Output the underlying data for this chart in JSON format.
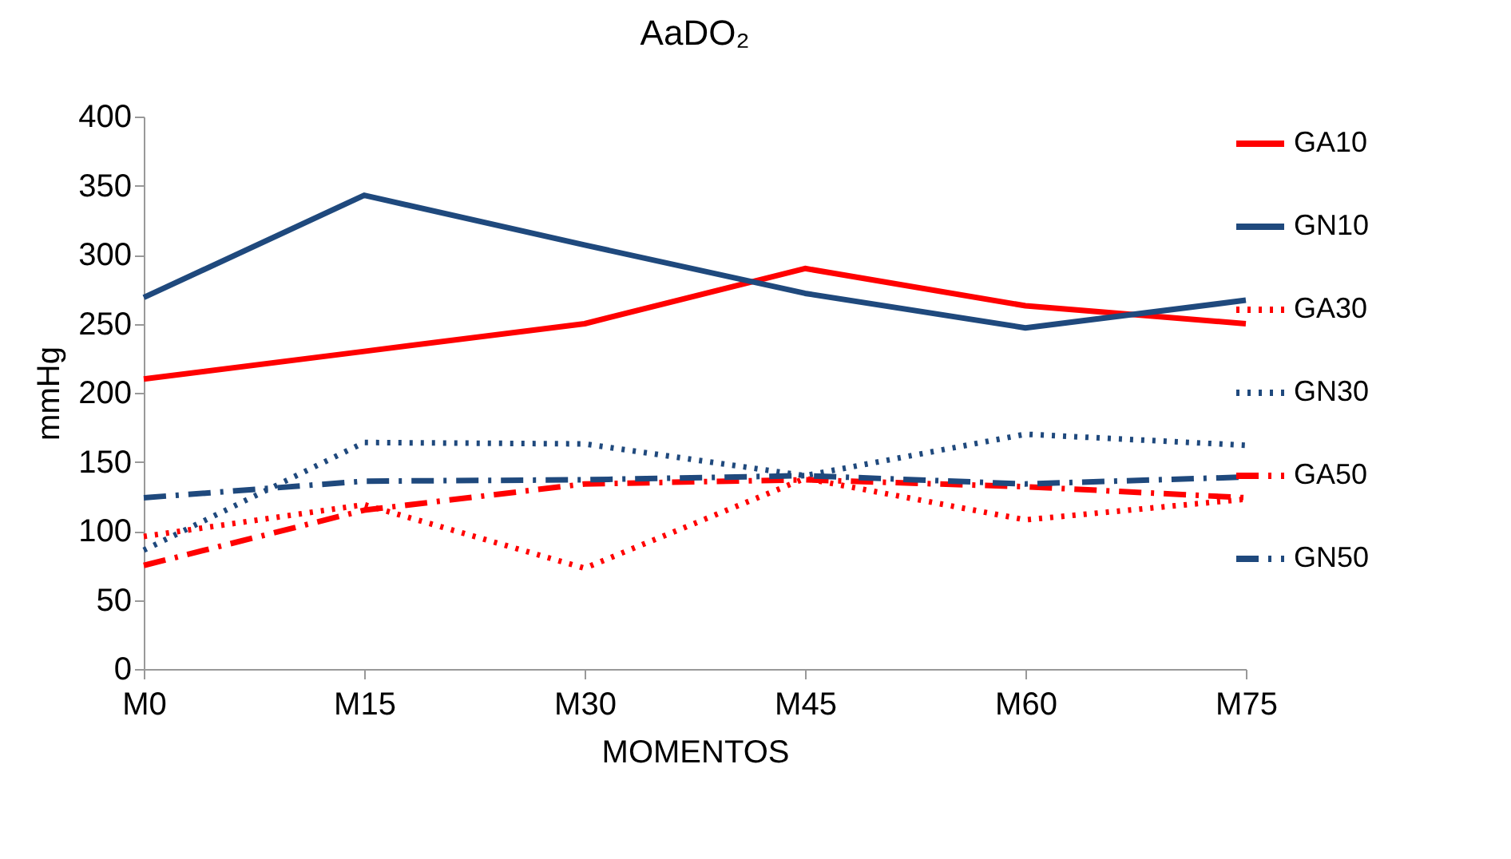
{
  "chart_data": {
    "type": "line",
    "title": "AaDO₂",
    "xlabel": "MOMENTOS",
    "ylabel": "mmHg",
    "categories": [
      "M0",
      "M15",
      "M30",
      "M45",
      "M60",
      "M75"
    ],
    "ylim": [
      0,
      400
    ],
    "yticks": [
      0,
      50,
      100,
      150,
      200,
      250,
      300,
      350,
      400
    ],
    "grid": false,
    "legend": "right",
    "marker": "none",
    "series": [
      {
        "name": "GA10",
        "color": "#ff0000",
        "line_style": "solid",
        "values": [
          210,
          230,
          250,
          290,
          263,
          250
        ]
      },
      {
        "name": "GN10",
        "color": "#1f497d",
        "line_style": "solid",
        "values": [
          269,
          343,
          307,
          272,
          247,
          267
        ]
      },
      {
        "name": "GA30",
        "color": "#ff0000",
        "line_style": "dotted",
        "values": [
          96,
          119,
          73,
          138,
          108,
          123
        ]
      },
      {
        "name": "GN30",
        "color": "#1f497d",
        "line_style": "dotted",
        "values": [
          86,
          164,
          163,
          140,
          170,
          162
        ]
      },
      {
        "name": "GA50",
        "color": "#ff0000",
        "line_style": "dashdot",
        "values": [
          75,
          115,
          134,
          137,
          132,
          124
        ]
      },
      {
        "name": "GN50",
        "color": "#1f497d",
        "line_style": "dashdot",
        "values": [
          124,
          136,
          137,
          140,
          134,
          139
        ]
      }
    ]
  }
}
